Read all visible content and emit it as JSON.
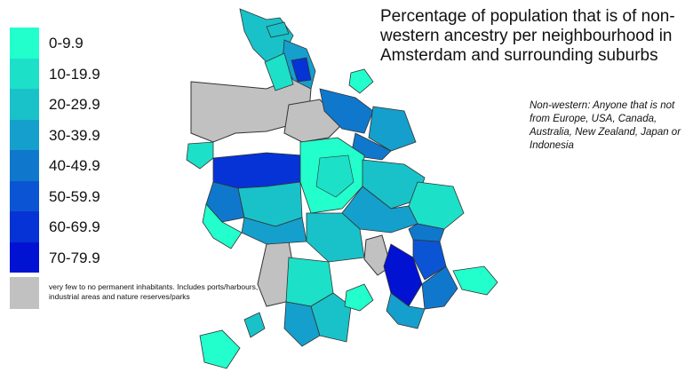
{
  "title": "Percentage of population that is of non-western ancestry per neighbourhood in Amsterdam and surrounding suburbs",
  "note": "Non-western: Anyone that is not from Europe, USA, Canada, Australia, New Zealand, Japan or Indonesia",
  "legend": [
    {
      "label": "0-9.9",
      "color": "#22ffcc"
    },
    {
      "label": "10-19.9",
      "color": "#1de0c8"
    },
    {
      "label": "20-29.9",
      "color": "#19c2c8"
    },
    {
      "label": "30-39.9",
      "color": "#159fcc"
    },
    {
      "label": "40-49.9",
      "color": "#0f78cc"
    },
    {
      "label": "50-59.9",
      "color": "#0b55d4"
    },
    {
      "label": "60-69.9",
      "color": "#0633d6"
    },
    {
      "label": "70-79.9",
      "color": "#0212d2"
    }
  ],
  "no_data": {
    "label": "very few to no permanent inhabitants. Includes ports/harbours, industrial areas and nature reserves/parks",
    "color": "#c1c1c1"
  },
  "colors": {
    "background": "#ffffff",
    "border": "#333333"
  }
}
